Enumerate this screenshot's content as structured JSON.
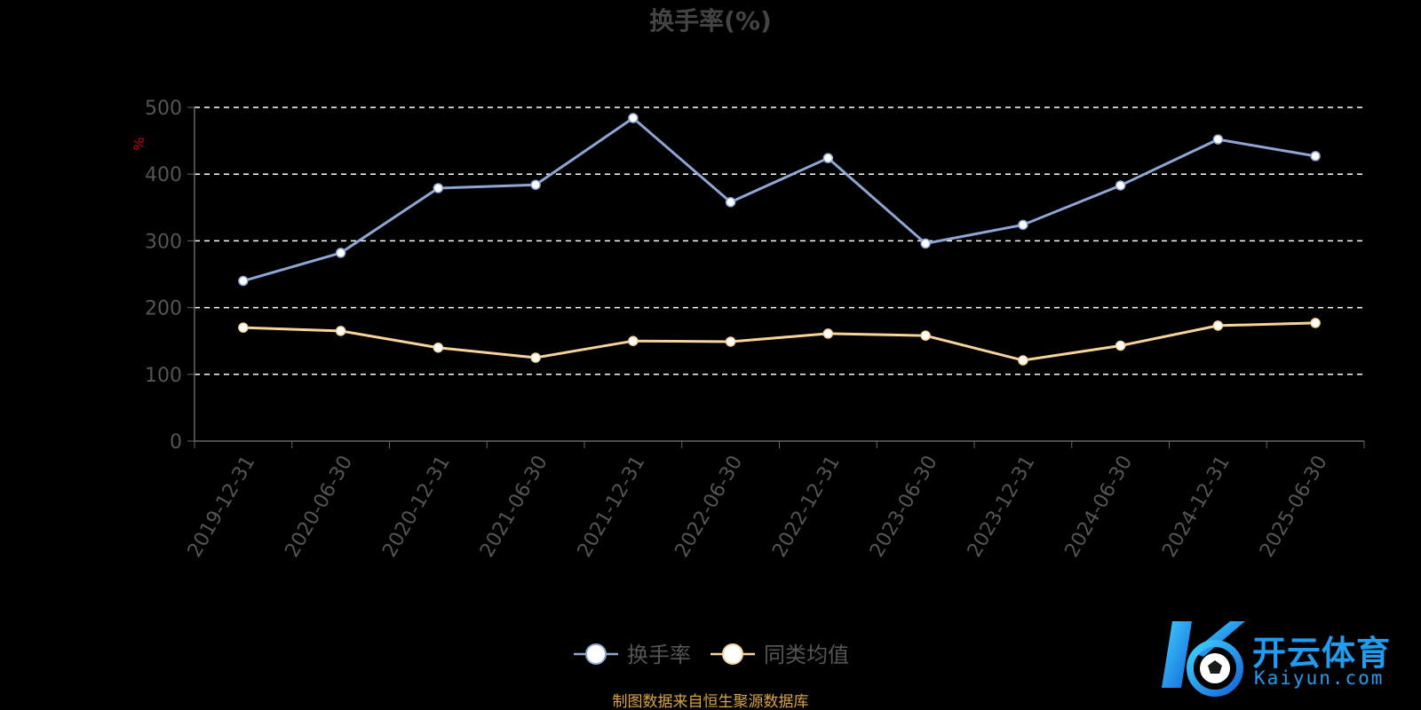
{
  "chart_data": {
    "type": "line",
    "title": "换手率(%)",
    "ylabel": "%",
    "xlabel": "",
    "ylim": [
      0,
      500
    ],
    "yticks": [
      0,
      100,
      200,
      300,
      400,
      500
    ],
    "categories": [
      "2019-12-31",
      "2020-06-30",
      "2020-12-31",
      "2021-06-30",
      "2021-12-31",
      "2022-06-30",
      "2022-12-31",
      "2023-06-30",
      "2023-12-31",
      "2024-06-30",
      "2024-12-31",
      "2025-06-30"
    ],
    "series": [
      {
        "name": "换手率",
        "color": "#8ea6d4",
        "values": [
          240,
          282,
          379,
          384,
          484,
          358,
          424,
          296,
          324,
          383,
          452,
          427
        ]
      },
      {
        "name": "同类均值",
        "color": "#f8d49a",
        "values": [
          170,
          165,
          140,
          125,
          150,
          149,
          161,
          158,
          121,
          143,
          173,
          177
        ]
      }
    ],
    "grid": true,
    "legend_position": "bottom",
    "source_note": "制图数据来自恒生聚源数据库"
  },
  "logo": {
    "cn": "开云体育",
    "en": "Kaiyun.com"
  }
}
